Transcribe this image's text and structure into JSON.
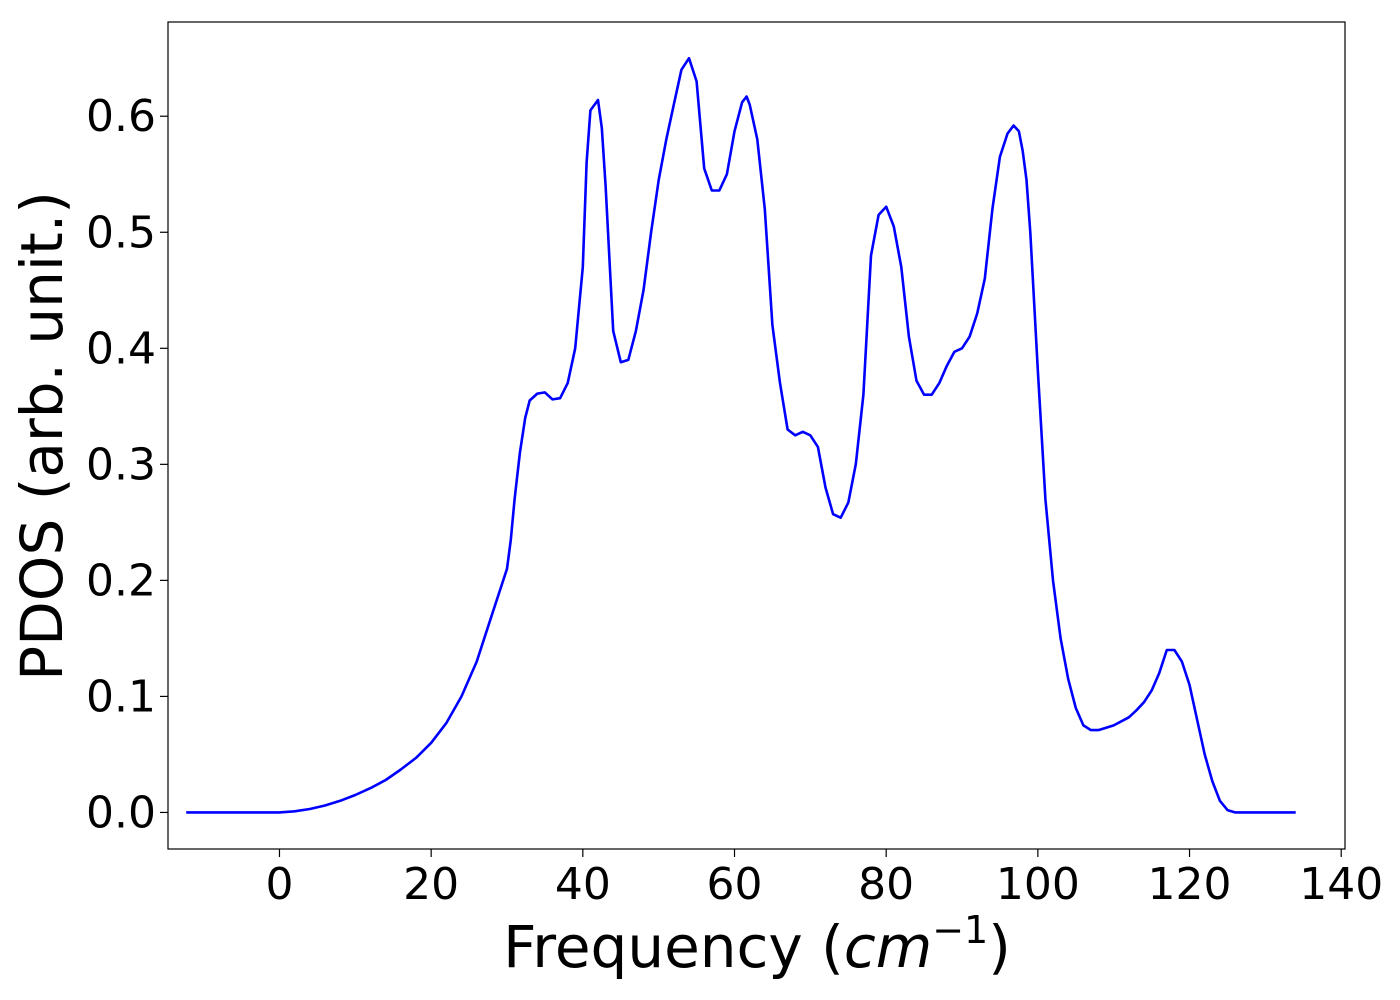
{
  "chart_data": {
    "type": "line",
    "xlabel": "Frequency",
    "xlabel_unit_base": "cm",
    "xlabel_unit_exp": "−1",
    "ylabel": "PDOS (arb. unit.)",
    "xlim": [
      -14.7,
      140.5
    ],
    "ylim": [
      -0.0315,
      0.6812
    ],
    "xticks": [
      0,
      20,
      40,
      60,
      80,
      100,
      120,
      140
    ],
    "xtick_labels": [
      "0",
      "20",
      "40",
      "60",
      "80",
      "100",
      "120",
      "140"
    ],
    "yticks": [
      0.0,
      0.1,
      0.2,
      0.3,
      0.4,
      0.5,
      0.6
    ],
    "ytick_labels": [
      "0.0",
      "0.1",
      "0.2",
      "0.3",
      "0.4",
      "0.5",
      "0.6"
    ],
    "grid": false,
    "series": [
      {
        "color": "#0000ff",
        "x": [
          -12.3,
          -6,
          -2,
          0,
          2,
          4,
          6,
          8,
          10,
          12,
          14,
          16,
          18,
          20,
          22,
          24,
          26,
          28,
          29,
          30,
          30.5,
          31,
          31.7,
          32.4,
          33,
          34,
          35,
          36,
          37,
          38,
          39,
          40,
          40.5,
          41,
          42,
          42.5,
          43,
          44,
          45,
          46,
          47,
          48,
          49,
          50,
          51,
          52,
          53,
          54,
          55,
          56,
          57,
          58,
          59,
          60,
          61,
          61.6,
          62,
          63,
          64,
          65,
          66,
          67,
          68,
          69,
          70,
          71,
          72,
          73,
          74,
          75,
          76,
          77,
          78,
          79,
          80,
          81,
          82,
          83,
          84,
          85,
          86,
          87,
          88,
          89,
          90,
          91,
          92,
          93,
          94,
          95,
          96,
          96.8,
          97.5,
          98,
          98.5,
          99,
          100,
          101,
          102,
          103,
          104,
          105,
          106,
          107,
          108,
          110,
          112,
          113,
          114,
          115,
          116,
          117,
          118,
          119,
          120,
          121,
          122,
          123,
          124,
          125,
          126,
          130,
          134
        ],
        "values": [
          0.0,
          0.0,
          0.0,
          0.0,
          0.001,
          0.003,
          0.006,
          0.01,
          0.015,
          0.021,
          0.028,
          0.037,
          0.047,
          0.06,
          0.077,
          0.1,
          0.13,
          0.17,
          0.19,
          0.21,
          0.235,
          0.27,
          0.31,
          0.34,
          0.355,
          0.361,
          0.362,
          0.356,
          0.357,
          0.37,
          0.4,
          0.47,
          0.56,
          0.605,
          0.614,
          0.59,
          0.54,
          0.415,
          0.388,
          0.39,
          0.415,
          0.45,
          0.5,
          0.545,
          0.58,
          0.61,
          0.64,
          0.65,
          0.63,
          0.555,
          0.536,
          0.536,
          0.55,
          0.587,
          0.612,
          0.617,
          0.61,
          0.58,
          0.52,
          0.42,
          0.37,
          0.33,
          0.325,
          0.328,
          0.325,
          0.315,
          0.28,
          0.257,
          0.254,
          0.267,
          0.3,
          0.36,
          0.48,
          0.515,
          0.522,
          0.505,
          0.47,
          0.41,
          0.372,
          0.36,
          0.36,
          0.37,
          0.385,
          0.397,
          0.4,
          0.41,
          0.43,
          0.46,
          0.52,
          0.565,
          0.585,
          0.592,
          0.587,
          0.57,
          0.545,
          0.5,
          0.38,
          0.27,
          0.2,
          0.15,
          0.115,
          0.09,
          0.075,
          0.071,
          0.071,
          0.075,
          0.082,
          0.088,
          0.095,
          0.105,
          0.12,
          0.14,
          0.14,
          0.13,
          0.11,
          0.08,
          0.05,
          0.027,
          0.01,
          0.002,
          0.0,
          0.0,
          0.0
        ]
      }
    ]
  }
}
